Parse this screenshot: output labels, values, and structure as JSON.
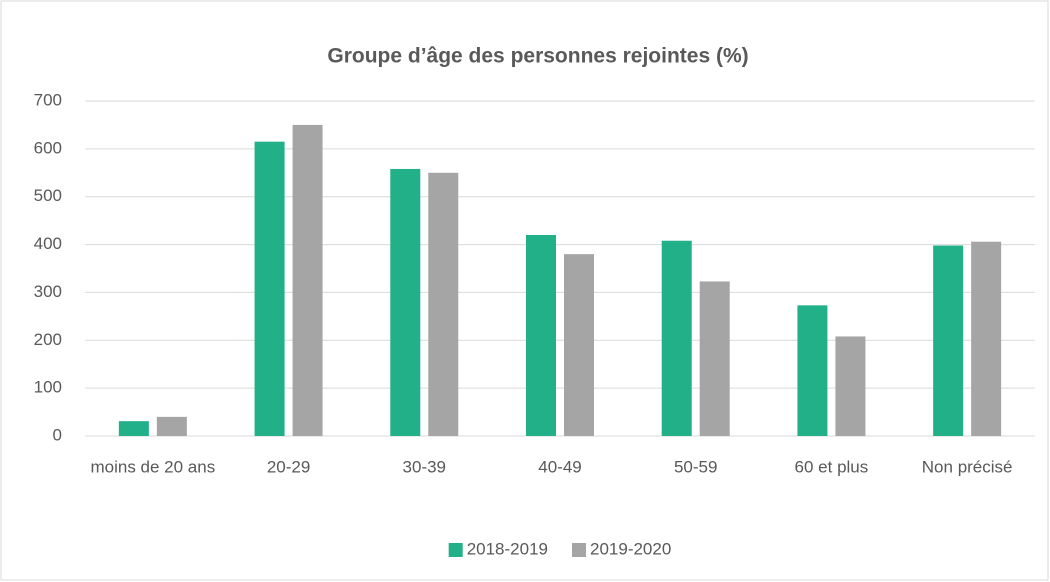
{
  "chart_data": {
    "type": "bar",
    "title": "Groupe d’âge des personnes rejointes (%)",
    "categories": [
      "moins de 20 ans",
      "20-29",
      "30-39",
      "40-49",
      "50-59",
      "60 et plus",
      "Non précisé"
    ],
    "series": [
      {
        "name": "2018-2019",
        "color": "#21b087",
        "values": [
          31,
          615,
          558,
          420,
          408,
          273,
          398
        ]
      },
      {
        "name": "2019-2020",
        "color": "#a5a5a5",
        "values": [
          40,
          650,
          550,
          380,
          323,
          208,
          406
        ]
      }
    ],
    "ylim": [
      0,
      700
    ],
    "yticks": [
      0,
      100,
      200,
      300,
      400,
      500,
      600,
      700
    ],
    "grid": true,
    "legend": "bottom"
  }
}
